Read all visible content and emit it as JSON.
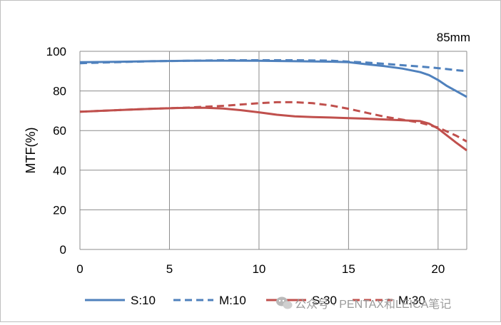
{
  "chart_data": {
    "type": "line",
    "title": "85mm",
    "xlabel": "",
    "ylabel": "MTF(%)",
    "xlim": [
      0,
      21.6
    ],
    "ylim": [
      0,
      100
    ],
    "xticks": [
      0,
      5,
      10,
      15,
      20
    ],
    "yticks": [
      0,
      20,
      40,
      60,
      80,
      100
    ],
    "grid": true,
    "legend_position": "bottom",
    "series": [
      {
        "name": "S:10",
        "color": "#4f81bd",
        "style": "solid",
        "x": [
          0,
          2,
          4,
          6,
          8,
          10,
          12,
          14,
          15,
          16,
          17,
          18,
          19,
          19.5,
          20,
          20.5,
          21,
          21.6
        ],
        "y": [
          94.5,
          94.7,
          95,
          95.2,
          95.3,
          95.2,
          95,
          94.8,
          94.5,
          93.5,
          92.5,
          91.3,
          89.5,
          88,
          85.5,
          82.5,
          80,
          77
        ]
      },
      {
        "name": "M:10",
        "color": "#4f81bd",
        "style": "dashed",
        "x": [
          0,
          2,
          4,
          6,
          8,
          10,
          12,
          14,
          15,
          16,
          17,
          18,
          19,
          20,
          21,
          21.6
        ],
        "y": [
          94,
          94.5,
          95,
          95.2,
          95.5,
          95.5,
          95.5,
          95.3,
          94.8,
          94.3,
          93.7,
          93,
          92.3,
          91.5,
          90.5,
          90
        ]
      },
      {
        "name": "S:30",
        "color": "#c0504d",
        "style": "solid",
        "x": [
          0,
          2,
          4,
          6,
          7,
          8,
          9,
          10,
          11,
          12,
          13,
          14,
          15,
          16,
          17,
          18,
          19,
          19.5,
          20,
          20.5,
          21,
          21.6
        ],
        "y": [
          69.5,
          70.3,
          71,
          71.5,
          71.5,
          71.1,
          70.3,
          69.2,
          68,
          67.2,
          66.8,
          66.6,
          66.3,
          66,
          65.6,
          65.2,
          64.8,
          63.5,
          61,
          57.5,
          54,
          50
        ]
      },
      {
        "name": "M:30",
        "color": "#c0504d",
        "style": "dashed",
        "x": [
          0,
          2,
          4,
          6,
          8,
          10,
          11,
          12,
          13,
          14,
          15,
          16,
          17,
          18,
          19,
          20,
          21,
          21.6
        ],
        "y": [
          69.5,
          70.3,
          71,
          71.6,
          72.5,
          73.8,
          74.3,
          74.3,
          73.8,
          72.7,
          71,
          69,
          67,
          65.5,
          64,
          61.5,
          57.5,
          54.5
        ]
      }
    ]
  },
  "watermark": {
    "icon": "wechat-icon",
    "text": "公众号 · PENTAX和LEICA笔记"
  }
}
